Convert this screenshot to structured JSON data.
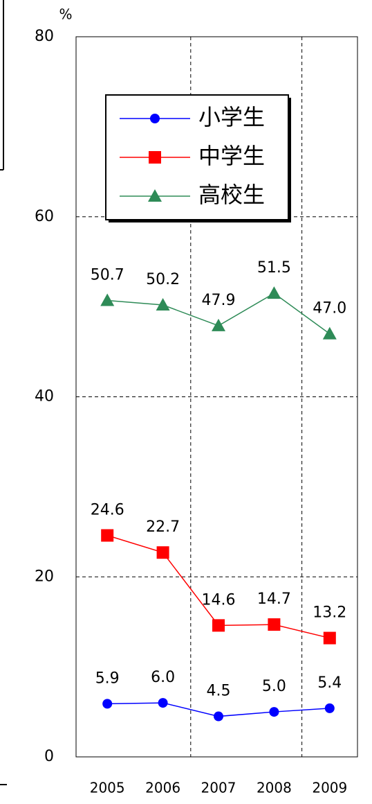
{
  "chart_data": {
    "type": "line",
    "y_unit": "%",
    "categories": [
      "2005",
      "2006",
      "2007",
      "2008",
      "2009"
    ],
    "series": [
      {
        "name": "小学生",
        "color": "#0000ff",
        "marker": "circle",
        "values": [
          5.9,
          6.0,
          4.5,
          5.0,
          5.4
        ],
        "value_labels": [
          "5.9",
          "6.0",
          "4.5",
          "5.0",
          "5.4"
        ]
      },
      {
        "name": "中学生",
        "color": "#ff0000",
        "marker": "square",
        "values": [
          24.6,
          22.7,
          14.6,
          14.7,
          13.2
        ],
        "value_labels": [
          "24.6",
          "22.7",
          "14.6",
          "14.7",
          "13.2"
        ]
      },
      {
        "name": "高校生",
        "color": "#2e8b57",
        "marker": "triangle",
        "values": [
          50.7,
          50.2,
          47.9,
          51.5,
          47.0
        ],
        "value_labels": [
          "50.7",
          "50.2",
          "47.9",
          "51.5",
          "47.0"
        ]
      }
    ],
    "ylim": [
      0,
      80
    ],
    "yticks": [
      0,
      20,
      40,
      60,
      80
    ],
    "grid": true,
    "legend": "upper left"
  }
}
